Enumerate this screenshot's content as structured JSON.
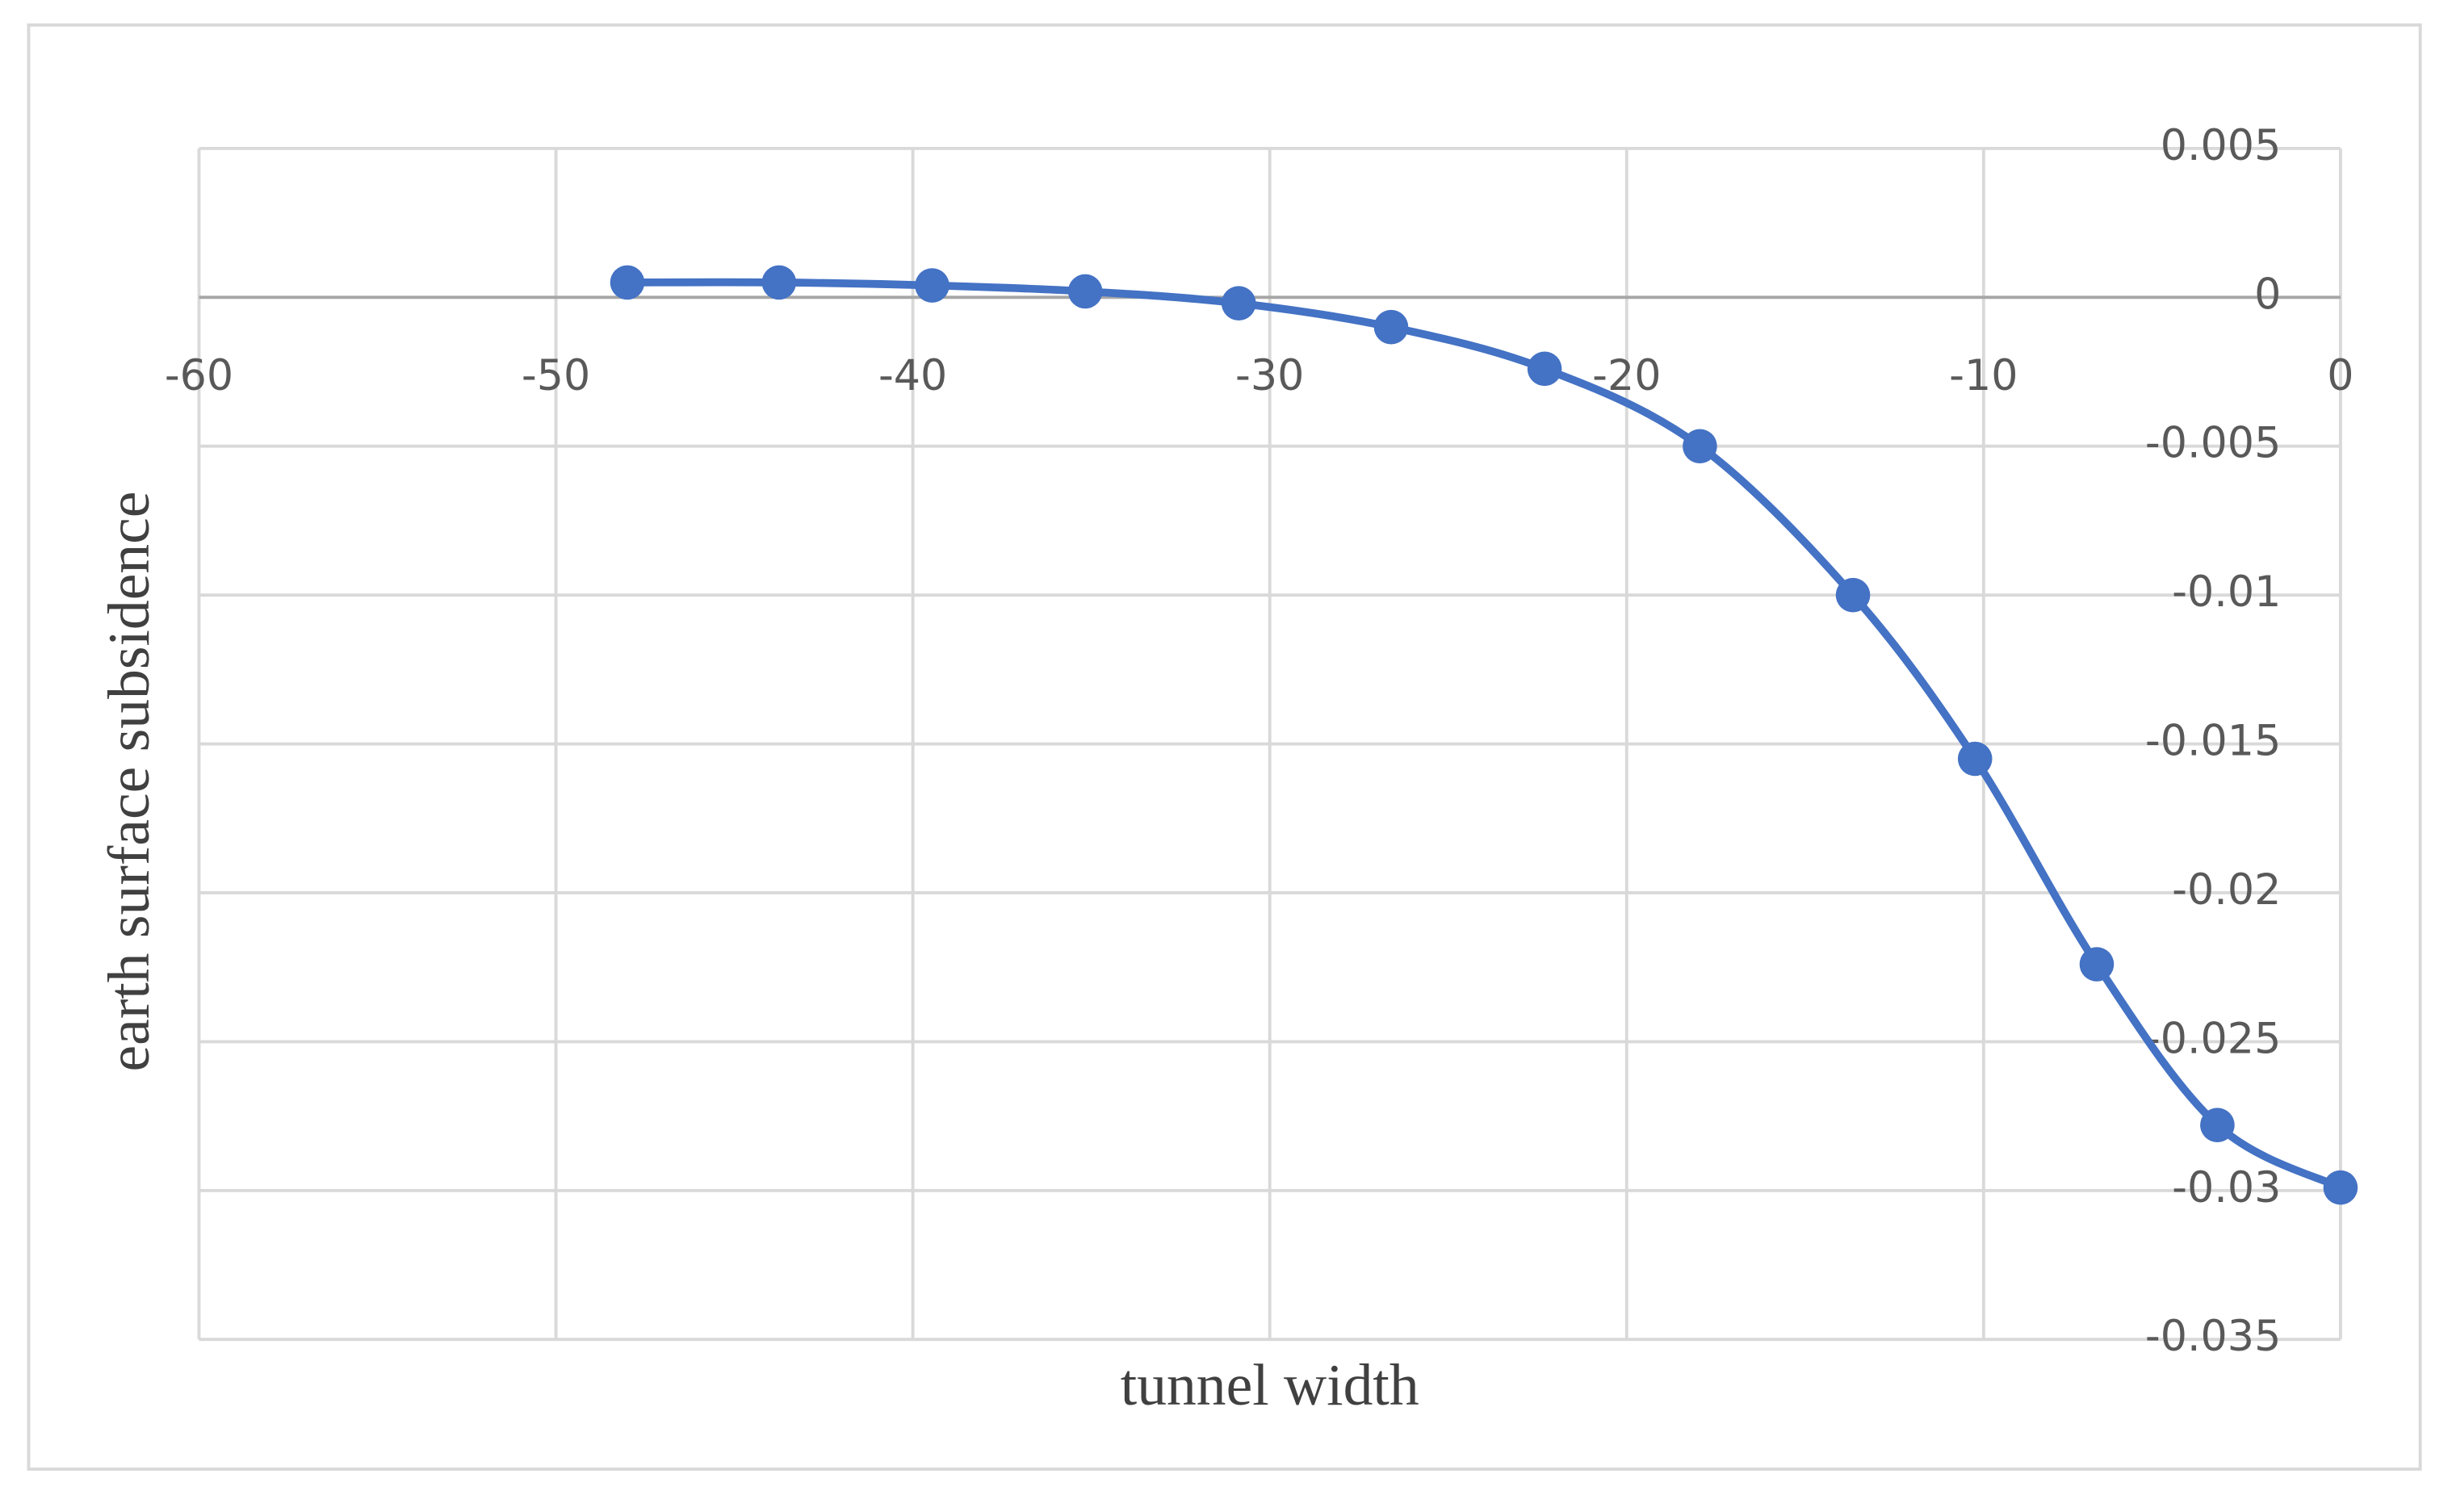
{
  "chart_data": {
    "type": "scatter",
    "xlabel": "tunnel width",
    "ylabel": "earth surface subsidence",
    "series": [
      {
        "color": "#4472c4",
        "x": [
          -48,
          -43.75,
          -39.46,
          -35.17,
          -30.87,
          -26.6,
          -22.3,
          -17.95,
          -13.66,
          -10.24,
          -6.83,
          -3.45,
          0
        ],
        "values": [
          0.0005,
          0.0005,
          0.0004,
          0.0002,
          -0.0002,
          -0.001,
          -0.0024,
          -0.005,
          -0.01,
          -0.0155,
          -0.0224,
          -0.0278,
          -0.0299
        ]
      }
    ],
    "xlim": [
      -60,
      0
    ],
    "xticks": [
      -60,
      -50,
      -40,
      -30,
      -20,
      -10,
      0
    ],
    "ylim": [
      -0.035,
      0.005
    ],
    "yticks": [
      0.005,
      0,
      -0.005,
      -0.01,
      -0.015,
      -0.02,
      -0.025,
      -0.03,
      -0.035
    ],
    "grid": true,
    "smooth": true
  }
}
